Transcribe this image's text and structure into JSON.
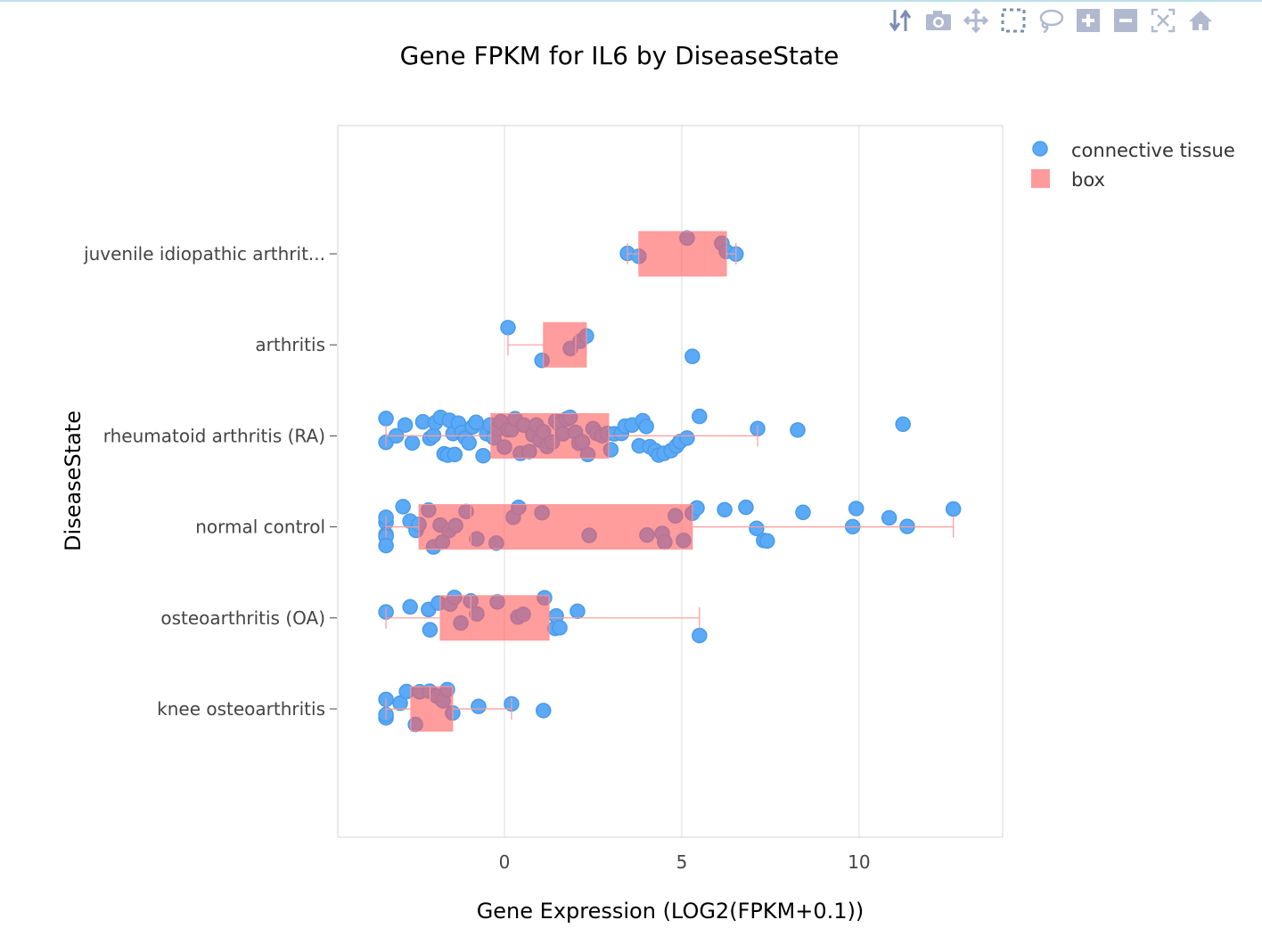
{
  "modebar": {
    "icons": [
      "toggle-spike-icon",
      "camera-icon",
      "pan-icon",
      "box-select-icon",
      "lasso-icon",
      "zoom-in-icon",
      "zoom-out-icon",
      "autoscale-icon",
      "reset-axes-icon"
    ],
    "color": "#9aa7c4"
  },
  "chart_data": {
    "type": "box",
    "orientation": "horizontal",
    "title": "Gene FPKM for IL6 by DiseaseState",
    "xlabel": "Gene Expression (LOG2(FPKM+0.1))",
    "ylabel": "DiseaseState",
    "xlim": [
      -4.7,
      14.05
    ],
    "xticks": [
      0,
      5,
      10
    ],
    "xtick_labels": [
      "0",
      "5",
      "10"
    ],
    "grid": true,
    "legend_position": "top-right",
    "legend": [
      {
        "name": "connective tissue",
        "symbol": "circle",
        "color": "#5aaaf8"
      },
      {
        "name": "box",
        "symbol": "square",
        "color": "#ff9a9a"
      }
    ],
    "categories": [
      "juvenile idiopathic arthrit...",
      "arthritis",
      "rheumatoid arthritis (RA)",
      "normal control",
      "osteoarthritis (OA)",
      "knee osteoarthritis"
    ],
    "boxes": [
      {
        "category": "juvenile idiopathic arthrit...",
        "lower": 3.47,
        "q1": 3.79,
        "median": 5.65,
        "q3": 6.26,
        "upper": 6.53
      },
      {
        "category": "arthritis",
        "lower": 0.1,
        "q1": 1.1,
        "median": 2.01,
        "q3": 2.31,
        "upper": 2.31
      },
      {
        "category": "rheumatoid arthritis (RA)",
        "lower": -3.34,
        "q1": -0.38,
        "median": 1.41,
        "q3": 2.94,
        "upper": 7.14
      },
      {
        "category": "normal control",
        "lower": -3.34,
        "q1": -2.41,
        "median": -0.95,
        "q3": 5.3,
        "upper": 12.66
      },
      {
        "category": "osteoarthritis (OA)",
        "lower": -3.34,
        "q1": -1.81,
        "median": -0.95,
        "q3": 1.26,
        "upper": 5.5
      },
      {
        "category": "knee osteoarthritis",
        "lower": -3.34,
        "q1": -2.64,
        "median": -2.1,
        "q3": -1.46,
        "upper": 0.2
      }
    ],
    "points": [
      {
        "category": "juvenile idiopathic arthrit...",
        "x": [
          3.47,
          3.79,
          5.15,
          6.13,
          6.26,
          6.53
        ]
      },
      {
        "category": "arthritis",
        "x": [
          0.1,
          1.06,
          1.86,
          2.14,
          2.31,
          5.3
        ]
      },
      {
        "category": "rheumatoid arthritis (RA)",
        "x": [
          -3.34,
          -3.34,
          -3.05,
          -2.8,
          -2.6,
          -2.3,
          -2.1,
          -2.0,
          -1.95,
          -1.8,
          -1.7,
          -1.6,
          -1.55,
          -1.45,
          -1.4,
          -1.3,
          -1.2,
          -1.1,
          -1.0,
          -0.9,
          -0.8,
          -0.6,
          -0.5,
          -0.4,
          -0.3,
          -0.2,
          -0.1,
          0.0,
          0.1,
          0.2,
          0.3,
          0.45,
          0.55,
          0.7,
          0.8,
          0.9,
          1.0,
          1.1,
          1.2,
          1.35,
          1.45,
          1.55,
          1.65,
          1.75,
          1.85,
          2.0,
          2.1,
          2.2,
          2.35,
          2.5,
          2.6,
          2.75,
          2.9,
          3.0,
          3.1,
          3.3,
          3.4,
          3.6,
          3.8,
          3.9,
          4.0,
          4.1,
          4.25,
          4.35,
          4.5,
          4.7,
          4.85,
          4.95,
          5.15,
          5.5,
          7.14,
          8.27,
          11.24
        ]
      },
      {
        "category": "normal control",
        "x": [
          -3.34,
          -3.34,
          -3.34,
          -3.34,
          -3.34,
          -2.86,
          -2.66,
          -2.49,
          -2.41,
          -2.14,
          -2.0,
          -1.81,
          -1.75,
          -1.56,
          -1.38,
          -1.08,
          -0.78,
          -0.23,
          0.25,
          0.4,
          1.06,
          2.39,
          4.02,
          4.45,
          4.52,
          4.82,
          5.05,
          5.3,
          5.43,
          6.21,
          6.81,
          7.11,
          7.31,
          7.41,
          8.42,
          9.82,
          9.92,
          10.85,
          11.36,
          12.66
        ]
      },
      {
        "category": "osteoarthritis (OA)",
        "x": [
          -3.34,
          -2.66,
          -2.14,
          -2.1,
          -1.86,
          -1.53,
          -1.41,
          -1.23,
          -0.95,
          -0.78,
          -0.2,
          0.38,
          0.53,
          1.13,
          1.43,
          1.46,
          1.56,
          2.06,
          5.5
        ]
      },
      {
        "category": "knee osteoarthritis",
        "x": [
          -3.34,
          -3.34,
          -3.34,
          -2.94,
          -2.76,
          -2.51,
          -2.39,
          -2.11,
          -1.91,
          -1.73,
          -1.61,
          -1.46,
          -0.73,
          0.2,
          1.1
        ]
      }
    ]
  }
}
